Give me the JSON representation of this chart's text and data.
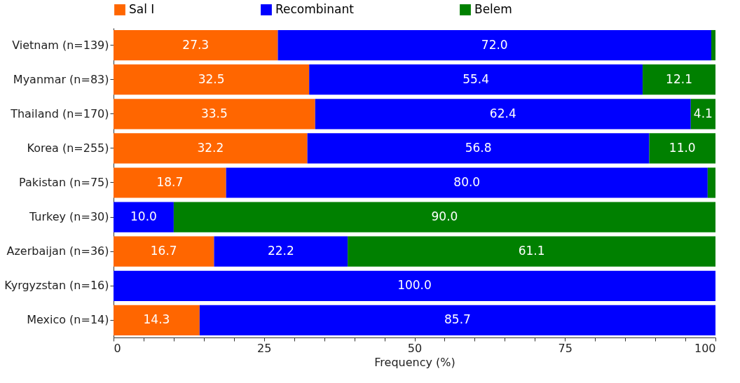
{
  "chart_data": {
    "type": "bar",
    "orientation": "horizontal",
    "stacked": true,
    "xlabel": "Frequency (%)",
    "legend": "top",
    "grid": false,
    "categories": [
      "Vietnam (n=139)",
      "Myanmar (n=83)",
      "Thailand (n=170)",
      "Korea (n=255)",
      "Pakistan (n=75)",
      "Turkey (n=30)",
      "Azerbaijan (n=36)",
      "Kyrgyzstan (n=16)",
      "Mexico (n=14)"
    ],
    "xlim": [
      0,
      100
    ],
    "xticks": [
      0,
      {
        "value": 5,
        "label": null
      },
      {
        "value": 10,
        "label": null
      },
      {
        "value": 15,
        "label": null
      },
      {
        "value": 20,
        "label": null
      },
      25,
      {
        "value": 30,
        "label": null
      },
      {
        "value": 35,
        "label": null
      },
      {
        "value": 40,
        "label": null
      },
      {
        "value": 45,
        "label": null
      },
      50,
      {
        "value": 55,
        "label": null
      },
      {
        "value": 60,
        "label": null
      },
      {
        "value": 65,
        "label": null
      },
      {
        "value": 70,
        "label": null
      },
      75,
      {
        "value": 80,
        "label": null
      },
      {
        "value": 85,
        "label": null
      },
      {
        "value": 90,
        "label": null
      },
      {
        "value": 95,
        "label": null
      },
      100
    ],
    "series": [
      {
        "name": "Sal I",
        "color": "#ff6600",
        "values": [
          27.3,
          32.5,
          33.5,
          32.2,
          18.7,
          null,
          16.7,
          null,
          14.3
        ],
        "value_labels": [
          "27.3",
          "32.5",
          "33.5",
          "32.2",
          "18.7",
          null,
          "16.7",
          null,
          "14.3"
        ]
      },
      {
        "name": "Recombinant",
        "color": "#0000ff",
        "values": [
          72.0,
          55.4,
          62.4,
          56.8,
          80.0,
          10.0,
          22.2,
          100.0,
          85.7
        ],
        "value_labels": [
          "72.0",
          "55.4",
          "62.4",
          "56.8",
          "80.0",
          "10.0",
          "22.2",
          "100.0",
          "85.7"
        ]
      },
      {
        "name": "Belem",
        "color": "#008000",
        "values": [
          0.7,
          12.1,
          4.1,
          11.0,
          1.3,
          90.0,
          61.1,
          null,
          null
        ],
        "value_labels": [
          null,
          "12.1",
          "4.1",
          "11.0",
          null,
          "90.0",
          "61.1",
          null,
          null
        ]
      }
    ]
  }
}
